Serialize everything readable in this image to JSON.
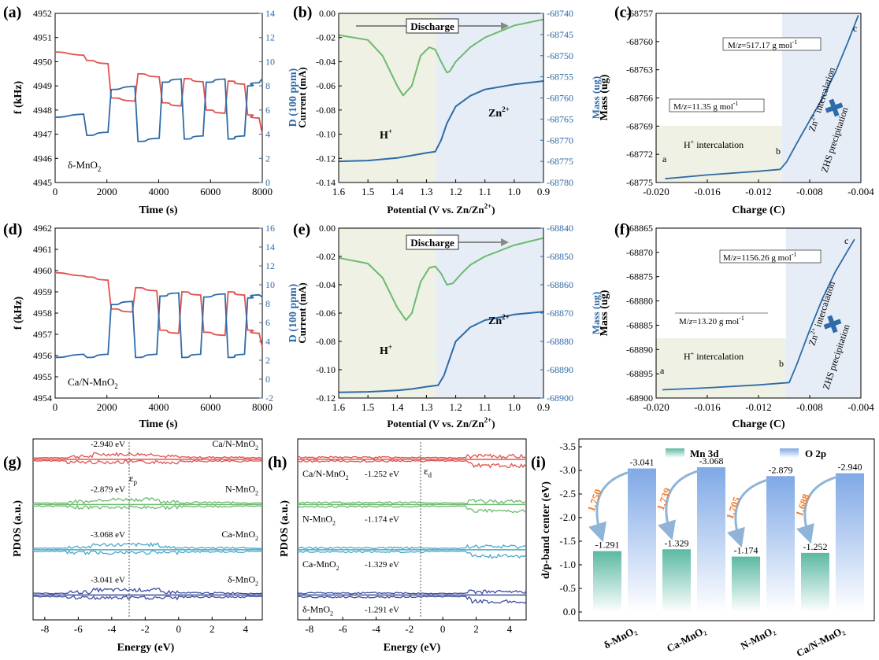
{
  "colors": {
    "red": "#e0524f",
    "blue": "#2e6ba8",
    "green": "#6dba6f",
    "hbg": "#eef1e3",
    "zbg": "#e6edf6",
    "cyan": "#4aa9c9",
    "navy": "#3f4f9f",
    "mn": "#5bb9a3",
    "o": "#7fa8e6",
    "orange": "#ef7d2c"
  },
  "panels": {
    "a": {
      "label": "(a)",
      "material": "δ-MnO",
      "material_sub": "2",
      "xlabel": "Time (s)",
      "ylabel_left": "f (kHz)",
      "ylabel_right": "D (100 ppm)",
      "xticks": [
        "0",
        "2000",
        "4000",
        "6000",
        "8000"
      ],
      "yticks_left": [
        "4945",
        "4946",
        "4947",
        "4948",
        "4949",
        "4950",
        "4951",
        "4952"
      ],
      "yticks_right": [
        "0",
        "2",
        "4",
        "6",
        "8",
        "10",
        "12",
        "14"
      ]
    },
    "b": {
      "label": "(b)",
      "xlabel": "Potential (V vs. Zn/Zn",
      "xlabel_sup": "2+",
      "xlabel_end": ")",
      "ylabel_left": "Current (mA)",
      "ylabel_right": "Mass (ug)",
      "xticks": [
        "1.6",
        "1.5",
        "1.4",
        "1.3",
        "1.2",
        "1.1",
        "1.0",
        "0.9"
      ],
      "yticks_left": [
        "-0.14",
        "-0.12",
        "-0.10",
        "-0.08",
        "-0.06",
        "-0.04",
        "-0.02",
        "0.00"
      ],
      "yticks_right": [
        "-68780",
        "-68775",
        "-68770",
        "-68765",
        "-68760",
        "-68755",
        "-68750",
        "-68745",
        "-68740"
      ],
      "discharge": "Discharge",
      "h": "H",
      "h_sup": "+",
      "zn": "Zn",
      "zn_sup": "2+"
    },
    "c": {
      "label": "(c)",
      "xlabel": "Charge (C)",
      "ylabel": "Mass (ug)",
      "xticks": [
        "-0.020",
        "-0.016",
        "-0.012",
        "-0.008",
        "-0.004"
      ],
      "yticks": [
        "-68775",
        "-68772",
        "-68769",
        "-68766",
        "-68763",
        "-68760",
        "-68757"
      ],
      "mz1_a": "M/",
      "mz1_z": "z",
      "mz1_b": "=11.35 g mol",
      "mz1_sup": "-1",
      "mz2_a": "M/",
      "mz2_z": "z",
      "mz2_b": "=517.17 g mol",
      "mz2_sup": "-1",
      "hint_a": "H",
      "hint_sup": "+",
      "hint_b": " intercalation",
      "zn_int_a": "Zn",
      "zn_int_sup": "2+",
      "zn_int_b": " intercalation",
      "zhs": "ZHS precipitation",
      "pa": "a",
      "pb": "b",
      "pc": "c"
    },
    "d": {
      "label": "(d)",
      "material": "Ca/N-MnO",
      "material_sub": "2",
      "xlabel": "Time (s)",
      "ylabel_left": "f (kHz)",
      "ylabel_right": "D (100 ppm)",
      "xticks": [
        "0",
        "2000",
        "4000",
        "6000",
        "8000"
      ],
      "yticks_left": [
        "4954",
        "4955",
        "4956",
        "4957",
        "4958",
        "4959",
        "4960",
        "4961",
        "4962"
      ],
      "yticks_right": [
        "-2",
        "0",
        "2",
        "4",
        "6",
        "8",
        "10",
        "12",
        "14",
        "16"
      ]
    },
    "e": {
      "label": "(e)",
      "xlabel": "Potential (V vs. Zn/Zn",
      "xlabel_sup": "2+",
      "xlabel_end": ")",
      "ylabel_left": "Current (mA)",
      "ylabel_right": "Mass (ug)",
      "xticks": [
        "1.6",
        "1.5",
        "1.4",
        "1.3",
        "1.2",
        "1.1",
        "1.0",
        "0.9"
      ],
      "yticks_left": [
        "-0.12",
        "-0.10",
        "-0.08",
        "-0.06",
        "-0.04",
        "-0.02",
        "0.00"
      ],
      "yticks_right": [
        "-68900",
        "-68890",
        "-68880",
        "-68870",
        "-68860",
        "-68850",
        "-68840"
      ],
      "discharge": "Discharge",
      "h": "H",
      "h_sup": "+",
      "zn": "Zn",
      "zn_sup": "2+"
    },
    "f": {
      "label": "(f)",
      "xlabel": "Charge (C)",
      "ylabel": "Mass (ug)",
      "xticks": [
        "-0.020",
        "-0.016",
        "-0.012",
        "-0.008",
        "-0.004"
      ],
      "yticks": [
        "-68900",
        "-68895",
        "-68890",
        "-68885",
        "-68880",
        "-68875",
        "-68870",
        "-68865"
      ],
      "mz1_a": "M/",
      "mz1_z": "z",
      "mz1_b": "=13.20 g mol",
      "mz1_sup": "-1",
      "mz2_a": "M/",
      "mz2_z": "z",
      "mz2_b": "=1156.26 g mol",
      "mz2_sup": "-1",
      "hint_a": "H",
      "hint_sup": "+",
      "hint_b": " intercalation",
      "zn_int_a": "Zn",
      "zn_int_sup": "2+",
      "zn_int_b": " intercalation",
      "zhs": "ZHS precipitation",
      "pa": "a",
      "pb": "b",
      "pc": "c"
    },
    "g": {
      "label": "(g)",
      "xlabel": "Energy (eV)",
      "ylabel": "PDOS (a.u.)",
      "xticks": [
        "-8",
        "-6",
        "-4",
        "-2",
        "0",
        "2",
        "4"
      ],
      "eps": "ε",
      "eps_sub": "p",
      "rows": [
        {
          "name": "Ca/N-MnO",
          "sub": "2",
          "value": "-2.940 eV"
        },
        {
          "name": "N-MnO",
          "sub": "2",
          "value": "-2.879 eV"
        },
        {
          "name": "Ca-MnO",
          "sub": "2",
          "value": "-3.068 eV"
        },
        {
          "name": "δ-MnO",
          "sub": "2",
          "value": "-3.041 eV"
        }
      ]
    },
    "h": {
      "label": "(h)",
      "xlabel": "Energy (eV)",
      "ylabel": "PDOS (a.u.)",
      "xticks": [
        "-8",
        "-6",
        "-4",
        "-2",
        "0",
        "2",
        "4"
      ],
      "eps": "ε",
      "eps_sub": "d",
      "rows": [
        {
          "name": "Ca/N-MnO",
          "sub": "2",
          "value": "-1.252 eV"
        },
        {
          "name": "N-MnO",
          "sub": "2",
          "value": "-1.174 eV"
        },
        {
          "name": "Ca-MnO",
          "sub": "2",
          "value": "-1.329 eV"
        },
        {
          "name": "δ-MnO",
          "sub": "2",
          "value": "-1.291 eV"
        }
      ]
    },
    "i": {
      "label": "(i)",
      "ylabel": "d/p-band center (eV)",
      "legend_mn": "Mn 3d",
      "legend_o": "O 2p",
      "yticks": [
        "0.0",
        "-0.5",
        "-1.0",
        "-1.5",
        "-2.0",
        "-2.5",
        "-3.0",
        "-3.5"
      ]
    }
  },
  "chart_data": [
    {
      "panel": "a",
      "type": "line",
      "x_range": [
        0,
        8500
      ],
      "ylim_left": [
        4945,
        4952
      ],
      "ylim_right": [
        0,
        14
      ],
      "series": [
        {
          "axis": "left",
          "color": "red",
          "steps": [
            [
              0,
              4950.4
            ],
            [
              1300,
              4950.05
            ],
            [
              2300,
              4948.5
            ],
            [
              3400,
              4949.5
            ],
            [
              4400,
              4948.3
            ],
            [
              5300,
              4949.3
            ],
            [
              6200,
              4948.0
            ],
            [
              7100,
              4949.2
            ],
            [
              7900,
              4947.8
            ],
            [
              8500,
              4947
            ]
          ]
        },
        {
          "axis": "right",
          "color": "blue",
          "steps": [
            [
              0,
              5.4
            ],
            [
              1300,
              3.9
            ],
            [
              2300,
              7.7
            ],
            [
              3400,
              3.4
            ],
            [
              4400,
              8.3
            ],
            [
              5300,
              3.6
            ],
            [
              6200,
              8.3
            ],
            [
              7100,
              3.6
            ],
            [
              7900,
              8.0
            ],
            [
              8500,
              8.6
            ]
          ]
        }
      ]
    },
    {
      "panel": "b",
      "type": "line",
      "xlim": [
        1.6,
        0.9
      ],
      "ylim_left": [
        -0.14,
        0.0
      ],
      "ylim_right": [
        -68780,
        -68740
      ],
      "current": {
        "x": [
          1.6,
          1.5,
          1.45,
          1.4,
          1.38,
          1.35,
          1.32,
          1.29,
          1.27,
          1.25,
          1.23,
          1.22,
          1.2,
          1.15,
          1.1,
          1.0,
          0.9
        ],
        "y": [
          -0.018,
          -0.022,
          -0.035,
          -0.06,
          -0.068,
          -0.06,
          -0.035,
          -0.028,
          -0.03,
          -0.04,
          -0.049,
          -0.048,
          -0.04,
          -0.028,
          -0.02,
          -0.01,
          -0.005
        ]
      },
      "mass": {
        "x": [
          1.6,
          1.5,
          1.4,
          1.35,
          1.3,
          1.27,
          1.25,
          1.23,
          1.2,
          1.15,
          1.1,
          1.0,
          0.9
        ],
        "y": [
          -68775,
          -68774.8,
          -68774.2,
          -68773.6,
          -68773,
          -68772.7,
          -68770,
          -68766,
          -68762,
          -68759.5,
          -68758,
          -68756.8,
          -68756
        ]
      }
    },
    {
      "panel": "c",
      "type": "line",
      "xlim": [
        -0.02,
        -0.004
      ],
      "ylim": [
        -68775,
        -68757
      ],
      "series": {
        "x": [
          -0.0193,
          -0.016,
          -0.012,
          -0.0103,
          -0.0098,
          -0.009,
          -0.008,
          -0.007,
          -0.006,
          -0.005,
          -0.0042
        ],
        "y": [
          -68774.6,
          -68774.2,
          -68773.8,
          -68773.6,
          -68772.8,
          -68770.8,
          -68768.4,
          -68766,
          -68763.3,
          -68760,
          -68757.2
        ]
      }
    },
    {
      "panel": "d",
      "type": "line",
      "x_range": [
        0,
        8500
      ],
      "ylim_left": [
        4954,
        4962
      ],
      "ylim_right": [
        -2,
        16
      ],
      "series": [
        {
          "axis": "left",
          "color": "red",
          "steps": [
            [
              0,
              4959.9
            ],
            [
              1300,
              4959.7
            ],
            [
              2300,
              4958.2
            ],
            [
              3300,
              4959.2
            ],
            [
              4300,
              4957.2
            ],
            [
              5200,
              4959
            ],
            [
              6100,
              4957.1
            ],
            [
              7100,
              4959
            ],
            [
              7900,
              4957.2
            ],
            [
              8500,
              4956.4
            ]
          ]
        },
        {
          "axis": "right",
          "color": "blue",
          "steps": [
            [
              0,
              2.3
            ],
            [
              1300,
              2.3
            ],
            [
              2300,
              7.9
            ],
            [
              3300,
              2.3
            ],
            [
              4300,
              8.8
            ],
            [
              5200,
              2.3
            ],
            [
              6100,
              8.7
            ],
            [
              7100,
              2.3
            ],
            [
              7900,
              8.6
            ],
            [
              8500,
              8.7
            ]
          ]
        }
      ]
    },
    {
      "panel": "e",
      "type": "line",
      "xlim": [
        1.6,
        0.9
      ],
      "ylim_left": [
        -0.12,
        0.0
      ],
      "ylim_right": [
        -68900,
        -68840
      ],
      "current": {
        "x": [
          1.6,
          1.5,
          1.45,
          1.4,
          1.37,
          1.35,
          1.32,
          1.29,
          1.27,
          1.25,
          1.23,
          1.21,
          1.18,
          1.15,
          1.1,
          1.0,
          0.9
        ],
        "y": [
          -0.021,
          -0.025,
          -0.035,
          -0.056,
          -0.065,
          -0.06,
          -0.038,
          -0.028,
          -0.027,
          -0.032,
          -0.04,
          -0.039,
          -0.032,
          -0.026,
          -0.02,
          -0.012,
          -0.007
        ]
      },
      "mass": {
        "x": [
          1.6,
          1.5,
          1.4,
          1.35,
          1.3,
          1.26,
          1.24,
          1.22,
          1.2,
          1.15,
          1.1,
          1.0,
          0.9
        ],
        "y": [
          -68898,
          -68897.8,
          -68897.3,
          -68896.8,
          -68896,
          -68895.5,
          -68892,
          -68886,
          -68880,
          -68875,
          -68872.5,
          -68870.5,
          -68869.5
        ]
      }
    },
    {
      "panel": "f",
      "type": "line",
      "xlim": [
        -0.02,
        -0.004
      ],
      "ylim": [
        -68900,
        -68865
      ],
      "series": {
        "x": [
          -0.0195,
          -0.016,
          -0.012,
          -0.0096,
          -0.009,
          -0.008,
          -0.007,
          -0.006,
          -0.005,
          -0.0045
        ],
        "y": [
          -68898.3,
          -68897.9,
          -68897.3,
          -68896.8,
          -68893,
          -68886,
          -68879.5,
          -68874,
          -68869.5,
          -68867.3
        ]
      }
    },
    {
      "panel": "i",
      "type": "bar",
      "categories": [
        "δ-MnO₂",
        "Ca-MnO₂",
        "N-MnO₂",
        "Ca/N-MnO₂"
      ],
      "ylim": [
        0.0,
        -3.5
      ],
      "series": [
        {
          "name": "Mn 3d",
          "values": [
            -1.291,
            -1.329,
            -1.174,
            -1.252
          ]
        },
        {
          "name": "O 2p",
          "values": [
            -3.041,
            -3.068,
            -2.879,
            -2.94
          ]
        }
      ],
      "differences": [
        "1.750",
        "1.739",
        "1.705",
        "1.688"
      ]
    }
  ]
}
